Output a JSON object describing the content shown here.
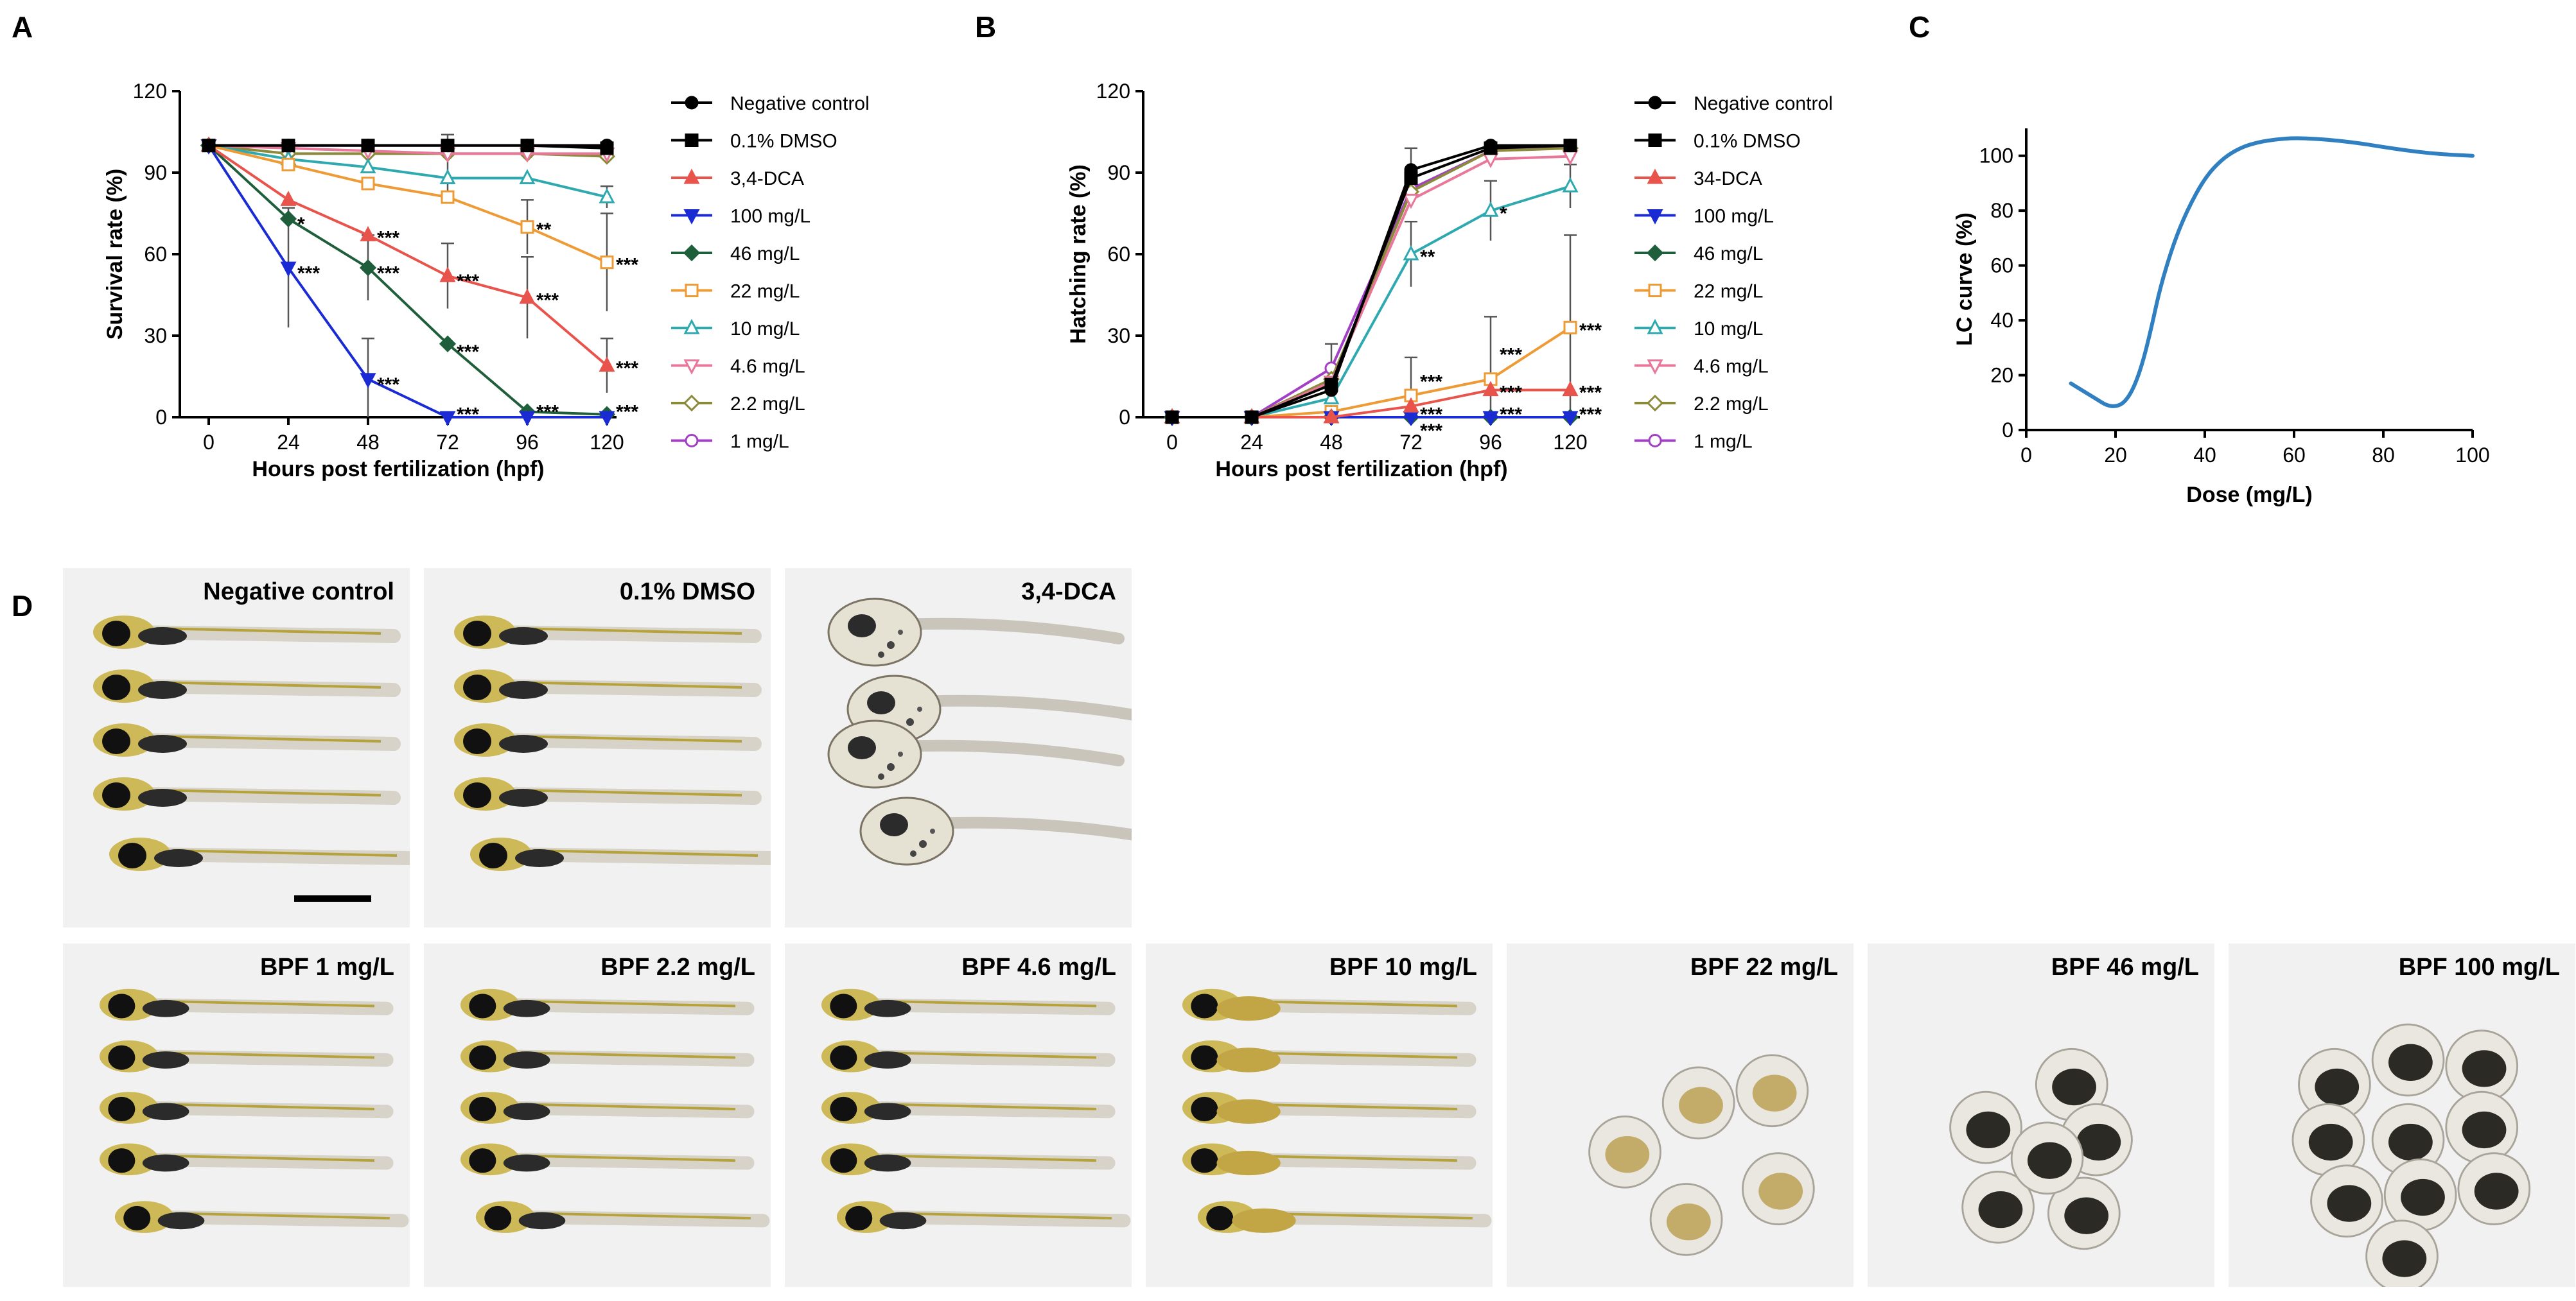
{
  "panels": {
    "A": "A",
    "B": "B",
    "C": "C",
    "D": "D"
  },
  "legend_colors": [
    "#000000",
    "#000000",
    "#e8534b",
    "#1a2bd4",
    "#1f5e3a",
    "#ee9a35",
    "#2fa9b0",
    "#e8779a",
    "#8a8a3a",
    "#a23fc4"
  ],
  "legend_markers": [
    "circle",
    "square",
    "triangle",
    "triangle-down",
    "diamond",
    "square-open",
    "triangle-open",
    "triangle-down-open",
    "diamond-open",
    "circle-open"
  ],
  "chart_data": [
    {
      "id": "A",
      "type": "line",
      "title": "",
      "xlabel": "Hours post fertilization (hpf)",
      "ylabel": "Survival rate (%)",
      "x": [
        0,
        24,
        48,
        72,
        96,
        120
      ],
      "ylim": [
        0,
        120
      ],
      "yticks": [
        "0",
        "30",
        "60",
        "90",
        "120"
      ],
      "xticks": [
        "0",
        "24",
        "48",
        "72",
        "96",
        "120"
      ],
      "legend_position": "right",
      "series": [
        {
          "name": "Negative control",
          "values": [
            100,
            100,
            100,
            100,
            100,
            100
          ]
        },
        {
          "name": "0.1% DMSO",
          "values": [
            100,
            100,
            100,
            100,
            100,
            99
          ]
        },
        {
          "name": "3,4-DCA",
          "values": [
            100,
            80,
            67,
            52,
            44,
            19
          ]
        },
        {
          "name": "100 mg/L",
          "values": [
            100,
            55,
            14,
            0,
            0,
            0
          ]
        },
        {
          "name": "46 mg/L",
          "values": [
            100,
            73,
            55,
            27,
            2,
            1
          ]
        },
        {
          "name": "22 mg/L",
          "values": [
            100,
            93,
            86,
            81,
            70,
            57
          ]
        },
        {
          "name": "10 mg/L",
          "values": [
            100,
            95,
            92,
            88,
            88,
            81
          ]
        },
        {
          "name": "4.6 mg/L",
          "values": [
            100,
            99,
            98,
            97,
            97,
            97
          ]
        },
        {
          "name": "2.2 mg/L",
          "values": [
            100,
            97,
            97,
            97,
            97,
            96
          ]
        },
        {
          "name": "1 mg/L",
          "values": [
            100,
            100,
            100,
            100,
            100,
            100
          ]
        }
      ],
      "error_bars": [
        {
          "x": 24,
          "y": 55,
          "err": 22
        },
        {
          "x": 48,
          "y": 14,
          "err": 15
        },
        {
          "x": 48,
          "y": 55,
          "err": 12
        },
        {
          "x": 72,
          "y": 52,
          "err": 12
        },
        {
          "x": 72,
          "y": 92,
          "err": 12
        },
        {
          "x": 96,
          "y": 44,
          "err": 15
        },
        {
          "x": 96,
          "y": 70,
          "err": 10
        },
        {
          "x": 120,
          "y": 57,
          "err": 18
        },
        {
          "x": 120,
          "y": 19,
          "err": 10
        },
        {
          "x": 120,
          "y": 81,
          "err": 4
        }
      ],
      "annotations": [
        {
          "x": 24,
          "y": 72,
          "text": "*"
        },
        {
          "x": 24,
          "y": 54,
          "text": "***"
        },
        {
          "x": 48,
          "y": 67,
          "text": "***"
        },
        {
          "x": 48,
          "y": 54,
          "text": "***"
        },
        {
          "x": 48,
          "y": 13,
          "text": "***"
        },
        {
          "x": 72,
          "y": 51,
          "text": "***"
        },
        {
          "x": 72,
          "y": 25,
          "text": "***"
        },
        {
          "x": 72,
          "y": 2,
          "text": "***"
        },
        {
          "x": 96,
          "y": 70,
          "text": "**"
        },
        {
          "x": 96,
          "y": 44,
          "text": "***"
        },
        {
          "x": 96,
          "y": 3,
          "text": "***"
        },
        {
          "x": 120,
          "y": 57,
          "text": "***"
        },
        {
          "x": 120,
          "y": 19,
          "text": "***"
        },
        {
          "x": 120,
          "y": 3,
          "text": "***"
        }
      ]
    },
    {
      "id": "B",
      "type": "line",
      "title": "",
      "xlabel": "Hours post fertilization (hpf)",
      "ylabel": "Hatching rate (%)",
      "x": [
        0,
        24,
        48,
        72,
        96,
        120
      ],
      "ylim": [
        0,
        120
      ],
      "yticks": [
        "0",
        "30",
        "60",
        "90",
        "120"
      ],
      "xticks": [
        "0",
        "24",
        "48",
        "72",
        "96",
        "120"
      ],
      "legend_position": "right",
      "series": [
        {
          "name": "Negative control",
          "values": [
            0,
            0,
            10,
            91,
            100,
            100
          ]
        },
        {
          "name": "0.1% DMSO",
          "values": [
            0,
            0,
            12,
            88,
            99,
            100
          ]
        },
        {
          "name": "34-DCA",
          "values": [
            0,
            0,
            0,
            4,
            10,
            10
          ]
        },
        {
          "name": "100 mg/L",
          "values": [
            0,
            0,
            0,
            0,
            0,
            0
          ]
        },
        {
          "name": "46 mg/L",
          "values": [
            0,
            0,
            0,
            0,
            0,
            0
          ]
        },
        {
          "name": "22 mg/L",
          "values": [
            0,
            0,
            2,
            8,
            14,
            33
          ]
        },
        {
          "name": "10 mg/L",
          "values": [
            0,
            0,
            7,
            60,
            76,
            85
          ]
        },
        {
          "name": "4.6 mg/L",
          "values": [
            0,
            0,
            13,
            80,
            95,
            96
          ]
        },
        {
          "name": "2.2 mg/L",
          "values": [
            0,
            0,
            14,
            83,
            98,
            99
          ]
        },
        {
          "name": "1 mg/L",
          "values": [
            0,
            0,
            18,
            84,
            98,
            100
          ]
        }
      ],
      "error_bars": [
        {
          "x": 48,
          "y": 18,
          "err": 9
        },
        {
          "x": 72,
          "y": 91,
          "err": 8
        },
        {
          "x": 72,
          "y": 60,
          "err": 12
        },
        {
          "x": 72,
          "y": 8,
          "err": 14
        },
        {
          "x": 96,
          "y": 76,
          "err": 11
        },
        {
          "x": 96,
          "y": 14,
          "err": 23
        },
        {
          "x": 120,
          "y": 85,
          "err": 8
        },
        {
          "x": 120,
          "y": 33,
          "err": 34
        }
      ],
      "annotations": [
        {
          "x": 72,
          "y": 60,
          "text": "**"
        },
        {
          "x": 72,
          "y": 14,
          "text": "***"
        },
        {
          "x": 72,
          "y": 2,
          "text": "***"
        },
        {
          "x": 72,
          "y": -4,
          "text": "***"
        },
        {
          "x": 96,
          "y": 76,
          "text": "*"
        },
        {
          "x": 96,
          "y": 24,
          "text": "***"
        },
        {
          "x": 96,
          "y": 10,
          "text": "***"
        },
        {
          "x": 96,
          "y": 2,
          "text": "***"
        },
        {
          "x": 120,
          "y": 33,
          "text": "***"
        },
        {
          "x": 120,
          "y": 10,
          "text": "***"
        },
        {
          "x": 120,
          "y": 2,
          "text": "***"
        }
      ]
    },
    {
      "id": "C",
      "type": "line",
      "title": "",
      "xlabel": "Dose (mg/L)",
      "ylabel": "LC curve (%)",
      "xlim": [
        0,
        100
      ],
      "ylim": [
        0,
        110
      ],
      "xticks": [
        "0",
        "20",
        "40",
        "60",
        "80",
        "100"
      ],
      "yticks": [
        "0",
        "20",
        "40",
        "60",
        "80",
        "100"
      ],
      "series": [
        {
          "name": "LC curve",
          "x": [
            10,
            12,
            14,
            16,
            18,
            20,
            22,
            24,
            26,
            28,
            30,
            33,
            36,
            40,
            44,
            48,
            52,
            56,
            60,
            65,
            70,
            75,
            80,
            85,
            90,
            95,
            100
          ],
          "values": [
            17,
            15,
            13,
            11,
            9,
            8.5,
            10,
            15,
            24,
            37,
            52,
            68,
            80,
            92,
            99,
            103,
            105,
            106,
            106.5,
            106.2,
            105.5,
            104.5,
            103.2,
            102,
            101,
            100.4,
            100
          ]
        }
      ]
    }
  ],
  "images": {
    "top_row": [
      {
        "label": "Negative control",
        "type": "larva",
        "scale_bar": true
      },
      {
        "label": "0.1% DMSO",
        "type": "larva"
      },
      {
        "label": "3,4-DCA",
        "type": "deformed"
      }
    ],
    "bottom_row": [
      {
        "label": "BPF 1 mg/L",
        "type": "larva"
      },
      {
        "label": "BPF 2.2 mg/L",
        "type": "larva"
      },
      {
        "label": "BPF 4.6 mg/L",
        "type": "larva"
      },
      {
        "label": "BPF 10 mg/L",
        "type": "larva-yolk"
      },
      {
        "label": "BPF 22 mg/L",
        "type": "egg-light"
      },
      {
        "label": "BPF 46 mg/L",
        "type": "egg-dark"
      },
      {
        "label": "BPF 100 mg/L",
        "type": "egg-dark"
      }
    ]
  }
}
